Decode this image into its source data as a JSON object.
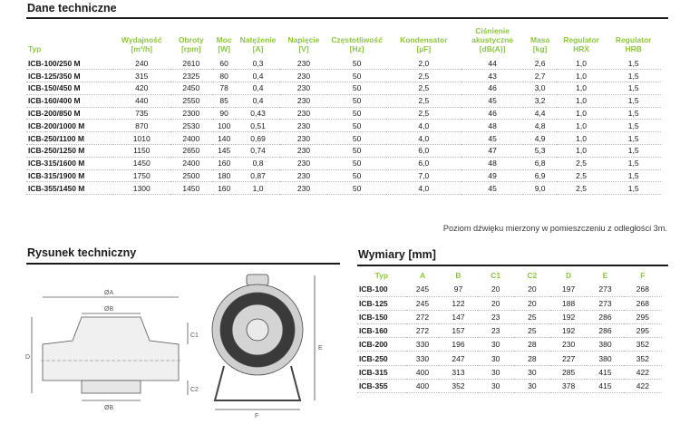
{
  "tech_data": {
    "title": "Dane techniczne",
    "columns": [
      {
        "label": "Typ",
        "unit": ""
      },
      {
        "label": "Wydajność",
        "unit": "[m³/h]"
      },
      {
        "label": "Obroty",
        "unit": "[rpm]"
      },
      {
        "label": "Moc",
        "unit": "[W]"
      },
      {
        "label": "Natężenie",
        "unit": "[A]"
      },
      {
        "label": "Napięcie",
        "unit": "[V]"
      },
      {
        "label": "Częstotliwość",
        "unit": "[Hz]"
      },
      {
        "label": "Kondensator",
        "unit": "[µF]"
      },
      {
        "label": "Ciśnienie akustyczne",
        "unit": "[dB(A)]"
      },
      {
        "label": "Masa",
        "unit": "[kg]"
      },
      {
        "label": "Regulator",
        "unit": "HRX"
      },
      {
        "label": "Regulator",
        "unit": "HRB"
      }
    ],
    "rows": [
      [
        "ICB-100/250 M",
        "240",
        "2610",
        "60",
        "0,3",
        "230",
        "50",
        "2,0",
        "44",
        "2,6",
        "1,0",
        "1,5"
      ],
      [
        "ICB-125/350 M",
        "315",
        "2325",
        "80",
        "0,4",
        "230",
        "50",
        "2,5",
        "43",
        "2,7",
        "1,0",
        "1,5"
      ],
      [
        "ICB-150/450 M",
        "420",
        "2450",
        "78",
        "0,4",
        "230",
        "50",
        "2,5",
        "46",
        "3,0",
        "1,0",
        "1,5"
      ],
      [
        "ICB-160/400 M",
        "440",
        "2550",
        "85",
        "0,4",
        "230",
        "50",
        "2,5",
        "45",
        "3,2",
        "1,0",
        "1,5"
      ],
      [
        "ICB-200/850 M",
        "735",
        "2300",
        "90",
        "0,43",
        "230",
        "50",
        "2,5",
        "46",
        "4,4",
        "1,0",
        "1,5"
      ],
      [
        "ICB-200/1000 M",
        "870",
        "2530",
        "100",
        "0,51",
        "230",
        "50",
        "4,0",
        "48",
        "4,8",
        "1,0",
        "1,5"
      ],
      [
        "ICB-250/1100 M",
        "1010",
        "2400",
        "140",
        "0,69",
        "230",
        "50",
        "4,0",
        "45",
        "4,9",
        "1,0",
        "1,5"
      ],
      [
        "ICB-250/1250 M",
        "1150",
        "2650",
        "145",
        "0,74",
        "230",
        "50",
        "6,0",
        "47",
        "5,3",
        "1,0",
        "1,5"
      ],
      [
        "ICB-315/1600 M",
        "1450",
        "2400",
        "160",
        "0,8",
        "230",
        "50",
        "6,0",
        "48",
        "6,8",
        "2,5",
        "1,5"
      ],
      [
        "ICB-315/1900 M",
        "1750",
        "2500",
        "180",
        "0,87",
        "230",
        "50",
        "7,0",
        "49",
        "6,9",
        "2,5",
        "1,5"
      ],
      [
        "ICB-355/1450 M",
        "1300",
        "1450",
        "160",
        "1,0",
        "230",
        "50",
        "4,0",
        "45",
        "9,0",
        "2,5",
        "1,5"
      ]
    ],
    "note": "Poziom dźwięku mierzony w pomieszczeniu z odległości 3m."
  },
  "drawing": {
    "title": "Rysunek techniczny",
    "labels": {
      "A": "ØA",
      "B": "ØB",
      "B2": "ØB",
      "C1": "C1",
      "C2": "C2",
      "D": "D",
      "E": "E",
      "F": "F"
    }
  },
  "dimensions": {
    "title": "Wymiary [mm]",
    "columns": [
      "Typ",
      "A",
      "B",
      "C1",
      "C2",
      "D",
      "E",
      "F"
    ],
    "rows": [
      [
        "ICB-100",
        "245",
        "97",
        "20",
        "20",
        "197",
        "273",
        "268"
      ],
      [
        "ICB-125",
        "245",
        "122",
        "20",
        "20",
        "188",
        "273",
        "268"
      ],
      [
        "ICB-150",
        "272",
        "147",
        "23",
        "25",
        "192",
        "286",
        "295"
      ],
      [
        "ICB-160",
        "272",
        "157",
        "23",
        "25",
        "192",
        "286",
        "295"
      ],
      [
        "ICB-200",
        "330",
        "196",
        "30",
        "28",
        "230",
        "380",
        "352"
      ],
      [
        "ICB-250",
        "330",
        "247",
        "30",
        "28",
        "227",
        "380",
        "352"
      ],
      [
        "ICB-315",
        "400",
        "313",
        "30",
        "30",
        "285",
        "415",
        "422"
      ],
      [
        "ICB-355",
        "400",
        "352",
        "30",
        "30",
        "378",
        "415",
        "422"
      ]
    ]
  },
  "colors": {
    "accent": "#8cc63f",
    "text": "#1a1a1a"
  }
}
